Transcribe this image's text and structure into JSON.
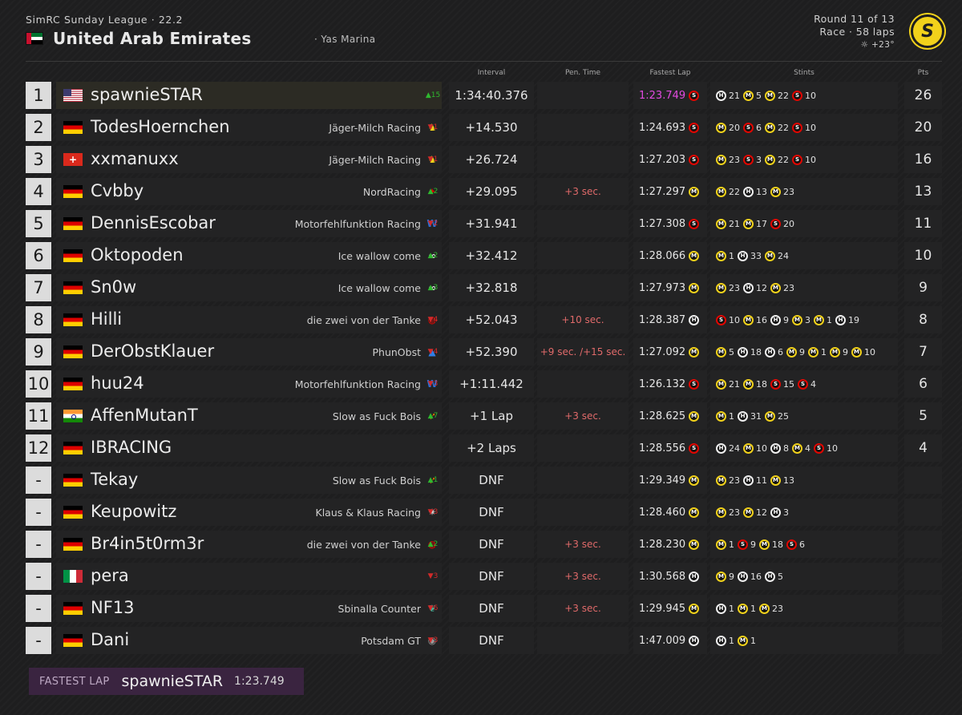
{
  "header": {
    "league": "SimRC Sunday League · 22.2",
    "gp_title": "United Arab Emirates",
    "track": "· Yas Marina",
    "round": "Round 11 of 13",
    "session": "Race · 58 laps",
    "weather": "☼ +23°",
    "logo_letter": "S",
    "flag_colors": [
      "#c8102e",
      "#00732f",
      "#ffffff",
      "#000000"
    ]
  },
  "columns": {
    "interval": "Interval",
    "pen_time": "Pen. Time",
    "fastest_lap": "Fastest Lap",
    "stints": "Stints",
    "pts": "Pts"
  },
  "tyre_colors": {
    "S": "#e10600",
    "M": "#f2d21b",
    "H": "#f0f0f0"
  },
  "rows": [
    {
      "pos": "1",
      "flag": "us",
      "driver": "spawnieSTAR",
      "team": "",
      "team_logo": "",
      "change": "▲15",
      "change_dir": "up",
      "interval": "1:34:40.376",
      "pen": "",
      "fastest": "1:23.749",
      "fastest_tyre": "S",
      "stints": [
        [
          "H",
          "21"
        ],
        [
          "M",
          "5"
        ],
        [
          "M",
          "22"
        ],
        [
          "S",
          "10"
        ]
      ],
      "pts": "26"
    },
    {
      "pos": "2",
      "flag": "de",
      "driver": "TodesHoernchen",
      "team": "Jäger-Milch Racing",
      "team_logo": "ferrari-logo",
      "change": "▼1",
      "change_dir": "down",
      "interval": "+14.530",
      "pen": "",
      "fastest": "1:24.693",
      "fastest_tyre": "S",
      "stints": [
        [
          "M",
          "20"
        ],
        [
          "S",
          "6"
        ],
        [
          "M",
          "22"
        ],
        [
          "S",
          "10"
        ]
      ],
      "pts": "20"
    },
    {
      "pos": "3",
      "flag": "ch",
      "driver": "xxmanuxx",
      "team": "Jäger-Milch Racing",
      "team_logo": "ferrari-logo",
      "change": "▼1",
      "change_dir": "down",
      "interval": "+26.724",
      "pen": "",
      "fastest": "1:27.203",
      "fastest_tyre": "S",
      "stints": [
        [
          "M",
          "23"
        ],
        [
          "S",
          "3"
        ],
        [
          "M",
          "22"
        ],
        [
          "S",
          "10"
        ]
      ],
      "pts": "16"
    },
    {
      "pos": "4",
      "flag": "de",
      "driver": "Cvbby",
      "team": "NordRacing",
      "team_logo": "redbull-logo",
      "change": "▲2",
      "change_dir": "up",
      "interval": "+29.095",
      "pen": "+3 sec.",
      "fastest": "1:27.297",
      "fastest_tyre": "M",
      "stints": [
        [
          "M",
          "22"
        ],
        [
          "H",
          "13"
        ],
        [
          "M",
          "23"
        ]
      ],
      "pts": "13"
    },
    {
      "pos": "5",
      "flag": "de",
      "driver": "DennisEscobar",
      "team": "Motorfehlfunktion Racing",
      "team_logo": "williams-logo",
      "change": "▼2",
      "change_dir": "down",
      "interval": "+31.941",
      "pen": "",
      "fastest": "1:27.308",
      "fastest_tyre": "S",
      "stints": [
        [
          "M",
          "21"
        ],
        [
          "M",
          "17"
        ],
        [
          "S",
          "20"
        ]
      ],
      "pts": "11"
    },
    {
      "pos": "6",
      "flag": "de",
      "driver": "Oktopoden",
      "team": "Ice wallow come",
      "team_logo": "alphatauri-logo",
      "change": "▲2",
      "change_dir": "up",
      "interval": "+32.412",
      "pen": "",
      "fastest": "1:28.066",
      "fastest_tyre": "M",
      "stints": [
        [
          "M",
          "1"
        ],
        [
          "H",
          "33"
        ],
        [
          "M",
          "24"
        ]
      ],
      "pts": "10"
    },
    {
      "pos": "7",
      "flag": "de",
      "driver": "Sn0w",
      "team": "Ice wallow come",
      "team_logo": "alphatauri-logo",
      "change": "▲3",
      "change_dir": "up",
      "interval": "+32.818",
      "pen": "",
      "fastest": "1:27.973",
      "fastest_tyre": "M",
      "stints": [
        [
          "M",
          "23"
        ],
        [
          "H",
          "12"
        ],
        [
          "M",
          "23"
        ]
      ],
      "pts": "9"
    },
    {
      "pos": "8",
      "flag": "de",
      "driver": "Hilli",
      "team": "die zwei von der Tanke",
      "team_logo": "haas-logo",
      "change": "▼4",
      "change_dir": "down",
      "interval": "+52.043",
      "pen": "+10 sec.",
      "fastest": "1:28.387",
      "fastest_tyre": "H",
      "stints": [
        [
          "S",
          "10"
        ],
        [
          "M",
          "16"
        ],
        [
          "H",
          "9"
        ],
        [
          "M",
          "3"
        ],
        [
          "M",
          "1"
        ],
        [
          "H",
          "19"
        ]
      ],
      "pts": "8"
    },
    {
      "pos": "9",
      "flag": "de",
      "driver": "DerObstKlauer",
      "team": "PhunObst",
      "team_logo": "alpine-logo",
      "change": "▼4",
      "change_dir": "down",
      "interval": "+52.390",
      "pen": "+9 sec. /+15 sec.",
      "fastest": "1:27.092",
      "fastest_tyre": "M",
      "stints": [
        [
          "M",
          "5"
        ],
        [
          "H",
          "18"
        ],
        [
          "H",
          "6"
        ],
        [
          "M",
          "9"
        ],
        [
          "M",
          "1"
        ],
        [
          "M",
          "9"
        ],
        [
          "M",
          "10"
        ]
      ],
      "pts": "7"
    },
    {
      "pos": "10",
      "flag": "de",
      "driver": "huu24",
      "team": "Motorfehlfunktion Racing",
      "team_logo": "williams-logo",
      "change": "▼3",
      "change_dir": "down",
      "interval": "+1:11.442",
      "pen": "",
      "fastest": "1:26.132",
      "fastest_tyre": "S",
      "stints": [
        [
          "M",
          "21"
        ],
        [
          "M",
          "18"
        ],
        [
          "S",
          "15"
        ],
        [
          "S",
          "4"
        ]
      ],
      "pts": "6"
    },
    {
      "pos": "11",
      "flag": "in",
      "driver": "AffenMutanT",
      "team": "Slow as Fuck Bois",
      "team_logo": "mclaren-logo",
      "change": "▲7",
      "change_dir": "up",
      "interval": "+1 Lap",
      "pen": "+3 sec.",
      "fastest": "1:28.625",
      "fastest_tyre": "M",
      "stints": [
        [
          "M",
          "1"
        ],
        [
          "H",
          "31"
        ],
        [
          "M",
          "25"
        ]
      ],
      "pts": "5"
    },
    {
      "pos": "12",
      "flag": "de",
      "driver": "IBRACING",
      "team": "",
      "team_logo": "",
      "change": "",
      "change_dir": "",
      "interval": "+2 Laps",
      "pen": "",
      "fastest": "1:28.556",
      "fastest_tyre": "S",
      "stints": [
        [
          "H",
          "24"
        ],
        [
          "M",
          "10"
        ],
        [
          "H",
          "8"
        ],
        [
          "M",
          "4"
        ],
        [
          "S",
          "10"
        ]
      ],
      "pts": "4"
    },
    {
      "pos": "-",
      "flag": "de",
      "driver": "Tekay",
      "team": "Slow as Fuck Bois",
      "team_logo": "mclaren-logo",
      "change": "▲1",
      "change_dir": "up",
      "interval": "DNF",
      "pen": "",
      "fastest": "1:29.349",
      "fastest_tyre": "M",
      "stints": [
        [
          "M",
          "23"
        ],
        [
          "H",
          "11"
        ],
        [
          "M",
          "13"
        ]
      ],
      "pts": ""
    },
    {
      "pos": "-",
      "flag": "de",
      "driver": "Keupowitz",
      "team": "Klaus & Klaus Racing",
      "team_logo": "mercedes-logo",
      "change": "▼3",
      "change_dir": "down",
      "interval": "DNF",
      "pen": "",
      "fastest": "1:28.460",
      "fastest_tyre": "M",
      "stints": [
        [
          "M",
          "23"
        ],
        [
          "M",
          "12"
        ],
        [
          "H",
          "3"
        ]
      ],
      "pts": ""
    },
    {
      "pos": "-",
      "flag": "de",
      "driver": "Br4in5t0rm3r",
      "team": "die zwei von der Tanke",
      "team_logo": "haas-logo",
      "change": "▲2",
      "change_dir": "up",
      "interval": "DNF",
      "pen": "+3 sec.",
      "fastest": "1:28.230",
      "fastest_tyre": "M",
      "stints": [
        [
          "M",
          "1"
        ],
        [
          "S",
          "9"
        ],
        [
          "M",
          "18"
        ],
        [
          "S",
          "6"
        ]
      ],
      "pts": ""
    },
    {
      "pos": "-",
      "flag": "it",
      "driver": "pera",
      "team": "",
      "team_logo": "",
      "change": "▼3",
      "change_dir": "down",
      "interval": "DNF",
      "pen": "+3 sec.",
      "fastest": "1:30.568",
      "fastest_tyre": "H",
      "stints": [
        [
          "M",
          "9"
        ],
        [
          "H",
          "16"
        ],
        [
          "H",
          "5"
        ]
      ],
      "pts": ""
    },
    {
      "pos": "-",
      "flag": "de",
      "driver": "NF13",
      "team": "Sbinalla Counter",
      "team_logo": "astonmartin-logo",
      "change": "▼6",
      "change_dir": "down",
      "interval": "DNF",
      "pen": "+3 sec.",
      "fastest": "1:29.945",
      "fastest_tyre": "M",
      "stints": [
        [
          "H",
          "1"
        ],
        [
          "M",
          "1"
        ],
        [
          "M",
          "23"
        ]
      ],
      "pts": ""
    },
    {
      "pos": "-",
      "flag": "de",
      "driver": "Dani",
      "team": "Potsdam GT",
      "team_logo": "alfaromeo-logo",
      "change": "▼3",
      "change_dir": "down",
      "interval": "DNF",
      "pen": "",
      "fastest": "1:47.009",
      "fastest_tyre": "H",
      "stints": [
        [
          "H",
          "1"
        ],
        [
          "M",
          "1"
        ]
      ],
      "pts": ""
    }
  ],
  "fastest_lap": {
    "label": "FASTEST LAP",
    "driver": "spawnieSTAR",
    "time": "1:23.749"
  }
}
